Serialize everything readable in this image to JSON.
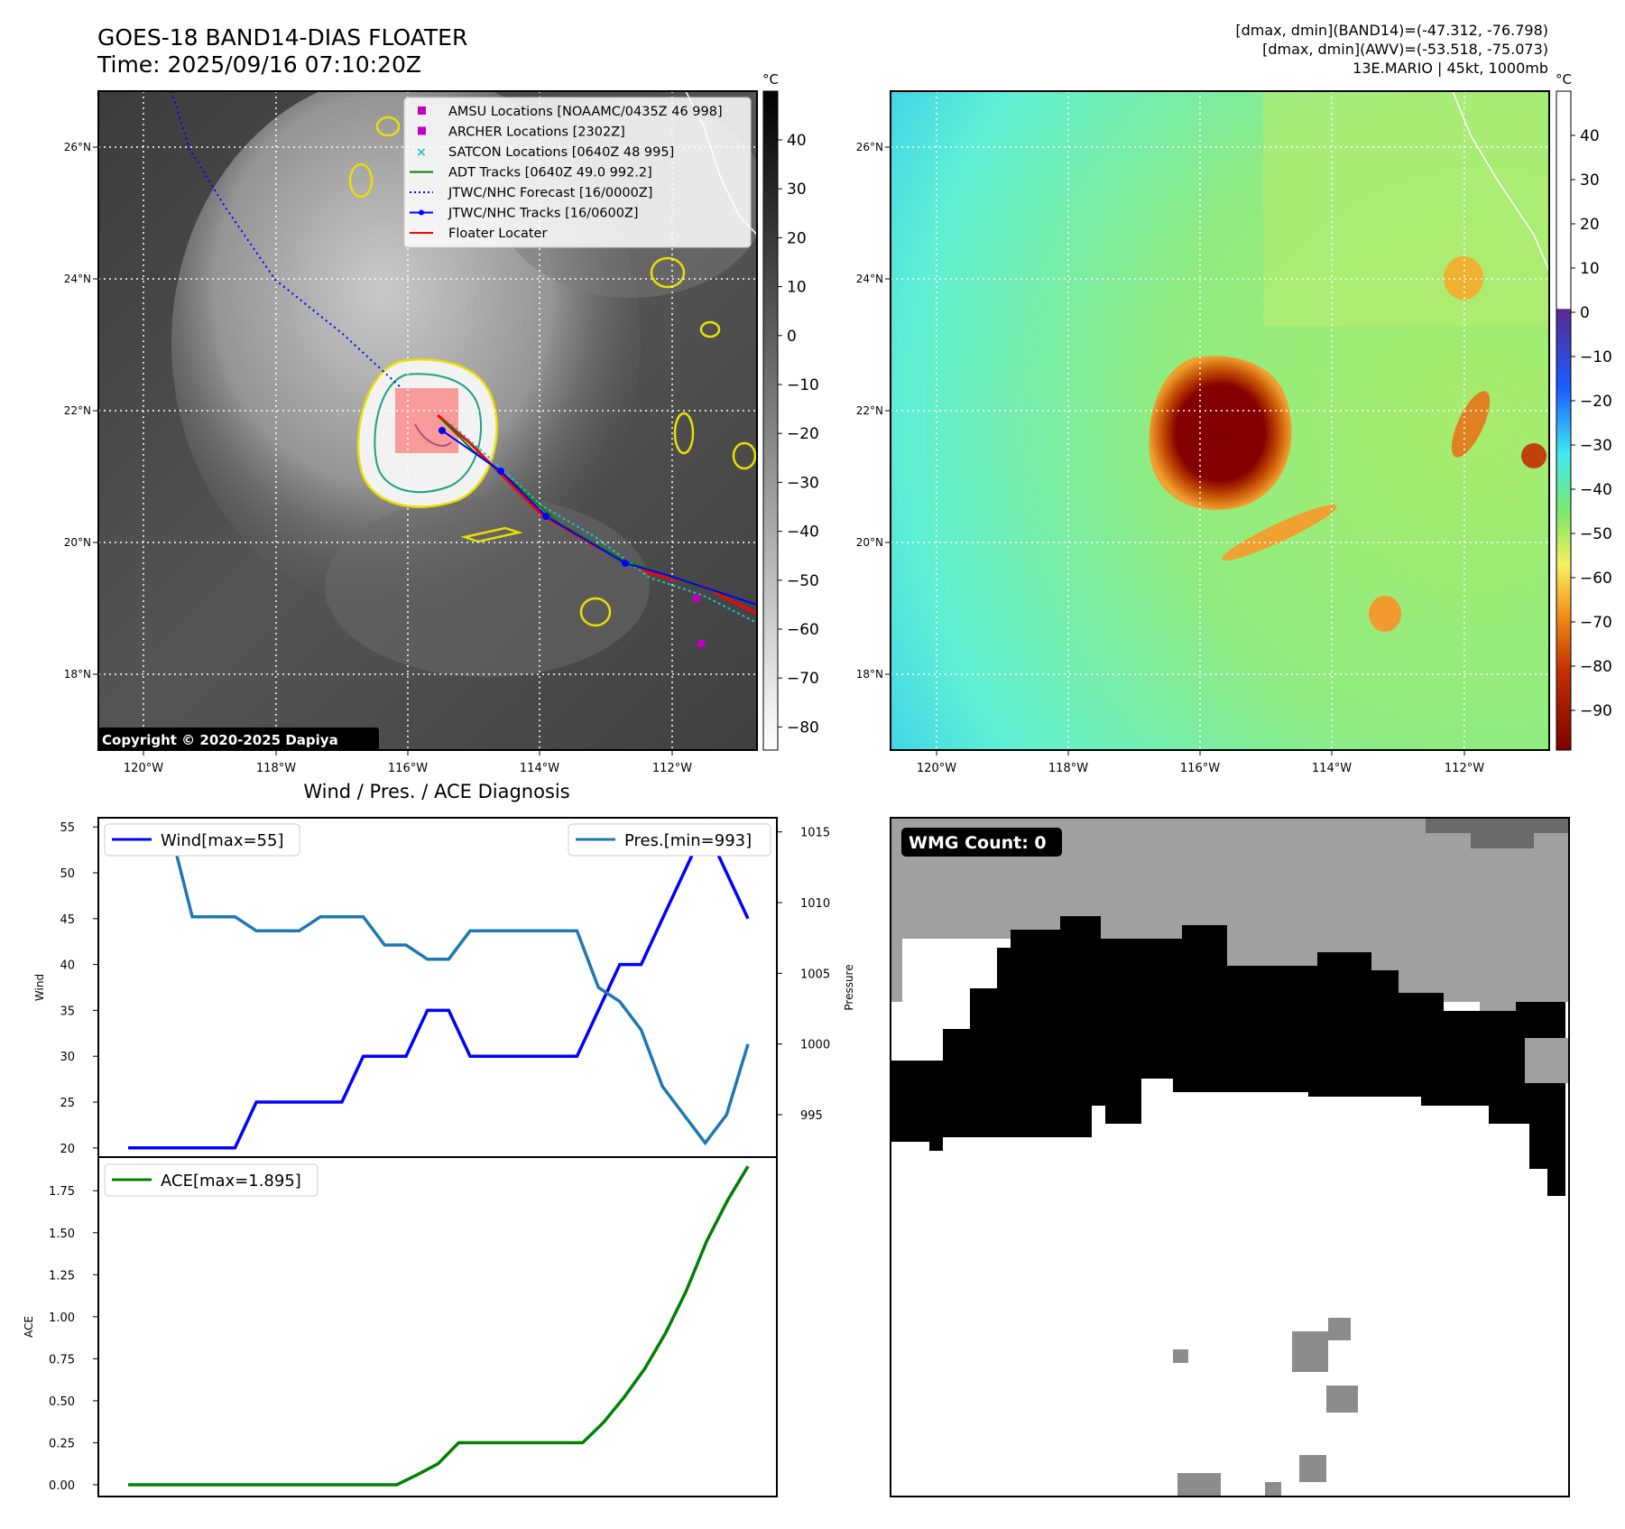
{
  "header": {
    "title": "GOES-18 BAND14-DIAS FLOATER",
    "time": "Time: 2025/09/16 07:10:20Z",
    "stat1": "[dmax, dmin](BAND14)=(-47.312, -76.798)",
    "stat2": "[dmax, dmin](AWV)=(-53.518, -75.073)",
    "storm": "13E.MARIO | 45kt, 1000mb"
  },
  "maps": {
    "lon_ticks": [
      "120°W",
      "118°W",
      "116°W",
      "114°W",
      "112°W"
    ],
    "lat_ticks": [
      "26°N",
      "24°N",
      "22°N",
      "20°N",
      "18°N"
    ],
    "copyright": "Copyright © 2020-2025 Dapiya",
    "ir_colorbar": {
      "unit": "°C",
      "ticks": [
        "40",
        "30",
        "20",
        "10",
        "0",
        "−10",
        "−20",
        "−30",
        "−40",
        "−50",
        "−60",
        "−70",
        "−80"
      ]
    },
    "awv_colorbar": {
      "unit": "°C",
      "ticks": [
        "40",
        "30",
        "20",
        "10",
        "0",
        "−10",
        "−20",
        "−30",
        "−40",
        "−50",
        "−60",
        "−70",
        "−80",
        "−90"
      ]
    },
    "legend": [
      {
        "label": "AMSU Locations [NOAAMC/0435Z 46 998]",
        "color": "#c000c0",
        "kind": "square"
      },
      {
        "label": "ARCHER Locations [2302Z]",
        "color": "#c000c0",
        "kind": "square"
      },
      {
        "label": "SATCON Locations [0640Z 48 995]",
        "color": "#20c0c0",
        "kind": "x"
      },
      {
        "label": "ADT Tracks [0640Z 49.0 992.2]",
        "color": "#008000",
        "kind": "line"
      },
      {
        "label": "JTWC/NHC Forecast [16/0000Z]",
        "color": "#0000ff",
        "kind": "dotted"
      },
      {
        "label": "JTWC/NHC Tracks [16/0600Z]",
        "color": "#0000ff",
        "kind": "line-dot"
      },
      {
        "label": "Floater Locater",
        "color": "#ff0000",
        "kind": "line"
      }
    ]
  },
  "diagnosis": {
    "title": "Wind / Pres. / ACE Diagnosis",
    "wind_axis_label": "Wind",
    "pres_axis_label": "Pressure",
    "ace_axis_label": "ACE",
    "wind_ticks": [
      "55",
      "50",
      "45",
      "40",
      "35",
      "30",
      "25",
      "20"
    ],
    "pres_ticks": [
      "1015",
      "1010",
      "1005",
      "1000",
      "995"
    ],
    "ace_ticks": [
      "1.75",
      "1.50",
      "1.25",
      "1.00",
      "0.75",
      "0.50",
      "0.25",
      "0.00"
    ],
    "wind_legend": "Wind[max=55]",
    "pres_legend": "Pres.[min=993]",
    "ace_legend": "ACE[max=1.895]"
  },
  "wmg": {
    "label": "WMG Count: 0"
  },
  "chart_data": [
    {
      "type": "line",
      "title": "Wind / Pres. / ACE Diagnosis",
      "ylabel": "Wind",
      "y2label": "Pressure",
      "ylim": [
        19,
        56
      ],
      "y2lim": [
        992,
        1016
      ],
      "series": [
        {
          "name": "Wind[max=55]",
          "color": "#0000ff",
          "values": [
            20,
            20,
            20,
            20,
            20,
            20,
            25,
            25,
            25,
            25,
            25,
            30,
            30,
            30,
            35,
            35,
            30,
            30,
            30,
            30,
            30,
            30,
            35,
            40,
            40,
            45,
            50,
            55,
            50,
            45
          ]
        },
        {
          "name": "Pres.[min=993]",
          "color": "#1f77b4",
          "axis": "right",
          "values": [
            1015,
            1015,
            1015,
            1009,
            1009,
            1009,
            1008,
            1008,
            1008,
            1009,
            1009,
            1009,
            1007,
            1007,
            1006,
            1006,
            1008,
            1008,
            1008,
            1008,
            1008,
            1008,
            1004,
            1003,
            1001,
            997,
            995,
            993,
            995,
            1000
          ]
        }
      ]
    },
    {
      "type": "line",
      "ylabel": "ACE",
      "ylim": [
        -0.07,
        1.95
      ],
      "series": [
        {
          "name": "ACE[max=1.895]",
          "color": "#008000",
          "values": [
            0,
            0,
            0,
            0,
            0,
            0,
            0,
            0,
            0,
            0,
            0,
            0,
            0,
            0,
            0.06,
            0.125,
            0.25,
            0.25,
            0.25,
            0.25,
            0.25,
            0.25,
            0.25,
            0.37,
            0.52,
            0.69,
            0.9,
            1.15,
            1.45,
            1.69,
            1.895
          ]
        }
      ]
    }
  ]
}
